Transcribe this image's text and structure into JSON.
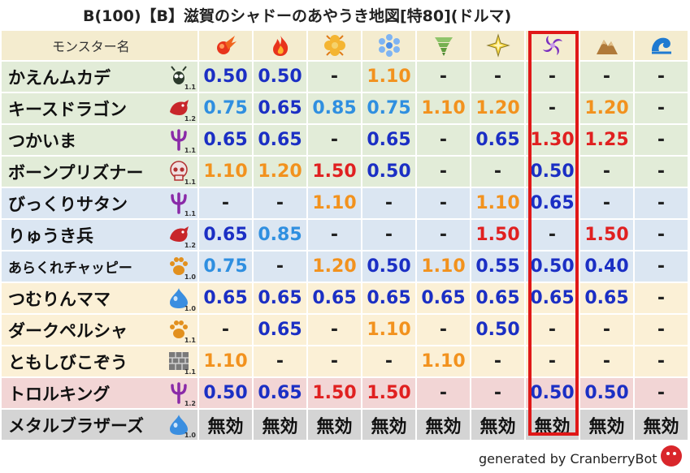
{
  "title": "B(100)【B】滋賀のシャドーのあやうき地図[特80](ドルマ)",
  "header_label": "モンスター名",
  "elements": [
    {
      "icon": "fire-ball-icon"
    },
    {
      "icon": "flame-icon"
    },
    {
      "icon": "explosion-clover-icon"
    },
    {
      "icon": "ice-snowflake-icon"
    },
    {
      "icon": "wind-tornado-icon"
    },
    {
      "icon": "lightning-icon"
    },
    {
      "icon": "dark-vortex-icon",
      "highlighted": true
    },
    {
      "icon": "earth-mountain-icon"
    },
    {
      "icon": "water-wave-icon"
    }
  ],
  "rows": [
    {
      "name": "かえんムカデ",
      "icon": "insect-icon",
      "level": "1.1",
      "bg": "green",
      "values": [
        "0.50",
        "0.50",
        "-",
        "1.10",
        "-",
        "-",
        "-",
        "-",
        "-"
      ]
    },
    {
      "name": "キースドラゴン",
      "icon": "dragon-icon",
      "level": "1.2",
      "bg": "green",
      "values": [
        "0.75",
        "0.65",
        "0.85",
        "0.75",
        "1.10",
        "1.20",
        "-",
        "1.20",
        "-"
      ]
    },
    {
      "name": "つかいま",
      "icon": "demon-trident-icon",
      "level": "1.1",
      "bg": "green",
      "values": [
        "0.65",
        "0.65",
        "-",
        "0.65",
        "-",
        "0.65",
        "1.30",
        "1.25",
        "-"
      ]
    },
    {
      "name": "ボーンプリズナー",
      "icon": "skull-icon",
      "level": "1.1",
      "bg": "green",
      "values": [
        "1.10",
        "1.20",
        "1.50",
        "0.50",
        "-",
        "-",
        "0.50",
        "-",
        "-"
      ]
    },
    {
      "name": "びっくりサタン",
      "icon": "demon-trident-icon",
      "level": "1.1",
      "bg": "blue",
      "values": [
        "-",
        "-",
        "1.10",
        "-",
        "-",
        "1.10",
        "0.65",
        "-",
        "-"
      ]
    },
    {
      "name": "りゅうき兵",
      "icon": "dragon-icon",
      "level": "1.2",
      "bg": "blue",
      "values": [
        "0.65",
        "0.85",
        "-",
        "-",
        "-",
        "1.50",
        "-",
        "1.50",
        "-"
      ]
    },
    {
      "name": "あらくれチャッピー",
      "icon": "paw-icon",
      "level": "1.0",
      "bg": "blue",
      "small": true,
      "values": [
        "0.75",
        "-",
        "1.20",
        "0.50",
        "1.10",
        "0.55",
        "0.50",
        "0.40",
        "-"
      ]
    },
    {
      "name": "つむりんママ",
      "icon": "slime-icon",
      "level": "1.0",
      "bg": "yellow",
      "values": [
        "0.65",
        "0.65",
        "0.65",
        "0.65",
        "0.65",
        "0.65",
        "0.65",
        "0.65",
        "-"
      ]
    },
    {
      "name": "ダークペルシャ",
      "icon": "paw-icon",
      "level": "1.1",
      "bg": "yellow",
      "values": [
        "-",
        "0.65",
        "-",
        "1.10",
        "-",
        "0.50",
        "-",
        "-",
        "-"
      ]
    },
    {
      "name": "ともしびこぞう",
      "icon": "brick-icon",
      "level": "1.1",
      "bg": "yellow",
      "values": [
        "1.10",
        "-",
        "-",
        "-",
        "1.10",
        "-",
        "-",
        "-",
        "-"
      ]
    },
    {
      "name": "トロルキング",
      "icon": "demon-trident-icon",
      "level": "1.2",
      "bg": "pink",
      "values": [
        "0.50",
        "0.65",
        "1.50",
        "1.50",
        "-",
        "-",
        "0.50",
        "0.50",
        "-"
      ]
    },
    {
      "name": "メタルブラザーズ",
      "icon": "slime-icon",
      "level": "1.0",
      "bg": "gray",
      "values": [
        "無効",
        "無効",
        "無効",
        "無効",
        "無効",
        "無効",
        "無効",
        "無効",
        "無効"
      ]
    }
  ],
  "colors": {
    "blue": "#1b2fc4",
    "light_blue": "#2f8fe0",
    "orange": "#f2921e",
    "red": "#e02020",
    "highlight_border": "#e01818"
  },
  "footer": "generated by CranberryBot",
  "footer_logo": "cranberry-bot-logo-icon"
}
